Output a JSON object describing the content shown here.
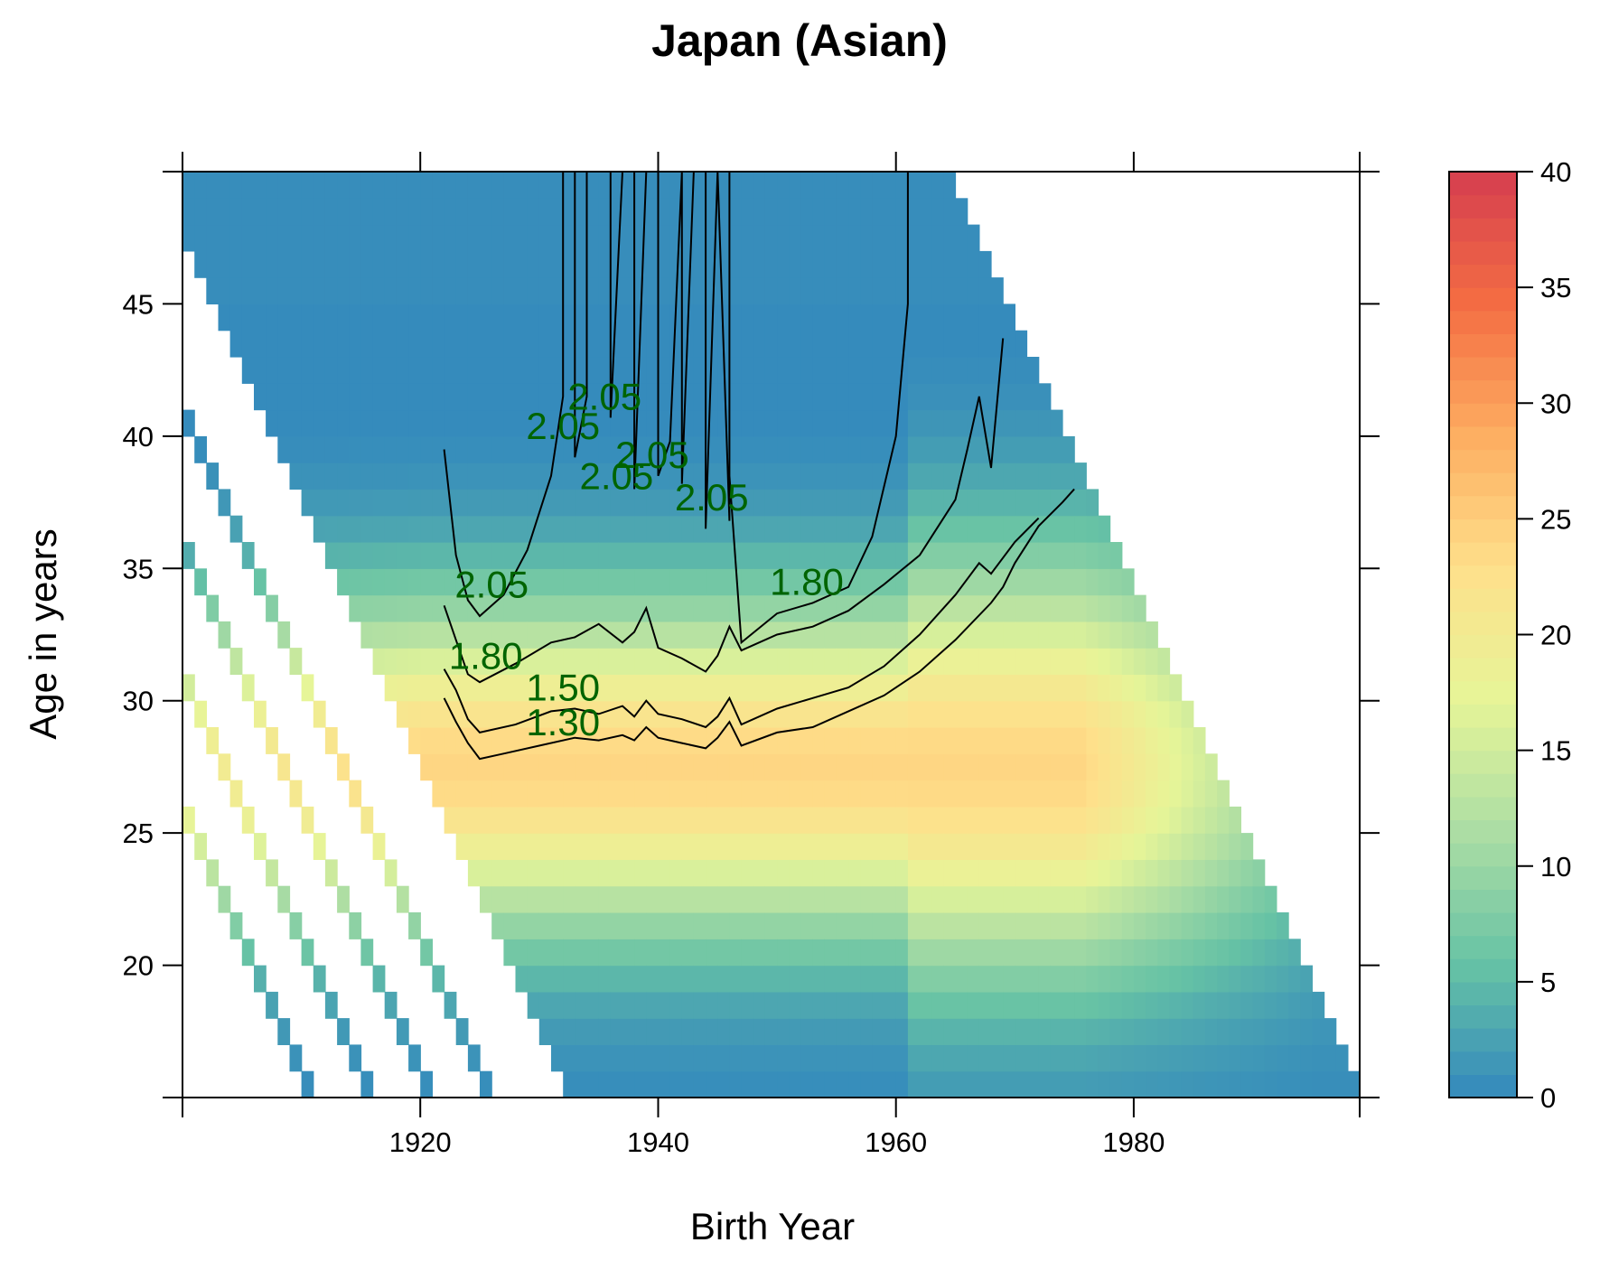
{
  "chart_data": {
    "type": "heatmap",
    "title": "Japan (Asian)",
    "xlabel": "Birth Year",
    "ylabel": "Age in years",
    "xlim": [
      1900,
      1999
    ],
    "ylim": [
      15,
      50
    ],
    "x_ticks": [
      1920,
      1940,
      1960,
      1980
    ],
    "x_tick_labels": [
      "1920",
      "1940",
      "1960",
      "1980"
    ],
    "y_ticks": [
      20,
      25,
      30,
      35,
      40,
      45
    ],
    "y_tick_labels": [
      "20",
      "25",
      "30",
      "35",
      "40",
      "45"
    ],
    "grid": false,
    "colorbar": {
      "range": [
        0,
        40
      ],
      "ticks": [
        0,
        5,
        10,
        15,
        20,
        25,
        30,
        35,
        40
      ],
      "tick_labels": [
        "0",
        "5",
        "10",
        "15",
        "20",
        "25",
        "30",
        "35",
        "40"
      ],
      "palette": [
        "#3288bd",
        "#66c2a5",
        "#abdda4",
        "#e6f598",
        "#fee08b",
        "#fdae61",
        "#f46d43",
        "#d53e4f"
      ]
    },
    "heatmap_peak": {
      "birth_year_range": [
        1920,
        1975
      ],
      "age": 27,
      "value": 24
    },
    "contours": [
      {
        "level_label": "1.30",
        "points": [
          [
            1922,
            30.1
          ],
          [
            1923,
            29.2
          ],
          [
            1924,
            28.4
          ],
          [
            1925,
            27.8
          ],
          [
            1927,
            28.0
          ],
          [
            1930,
            28.3
          ],
          [
            1933,
            28.6
          ],
          [
            1935,
            28.5
          ],
          [
            1937,
            28.7
          ],
          [
            1938,
            28.5
          ],
          [
            1939,
            29.0
          ],
          [
            1940,
            28.6
          ],
          [
            1942,
            28.4
          ],
          [
            1944,
            28.2
          ],
          [
            1945,
            28.6
          ],
          [
            1946,
            29.2
          ],
          [
            1947,
            28.3
          ],
          [
            1950,
            28.8
          ],
          [
            1953,
            29.0
          ],
          [
            1956,
            29.6
          ],
          [
            1959,
            30.2
          ],
          [
            1962,
            31.1
          ],
          [
            1965,
            32.3
          ],
          [
            1968,
            33.7
          ],
          [
            1969,
            34.3
          ],
          [
            1970,
            35.2
          ],
          [
            1972,
            36.6
          ],
          [
            1974,
            37.5
          ],
          [
            1975,
            38.0
          ]
        ]
      },
      {
        "level_label": "1.50",
        "points": [
          [
            1922,
            31.2
          ],
          [
            1923,
            30.4
          ],
          [
            1924,
            29.3
          ],
          [
            1925,
            28.8
          ],
          [
            1928,
            29.1
          ],
          [
            1931,
            29.6
          ],
          [
            1933,
            29.7
          ],
          [
            1935,
            29.5
          ],
          [
            1937,
            29.8
          ],
          [
            1938,
            29.4
          ],
          [
            1939,
            30.0
          ],
          [
            1940,
            29.5
          ],
          [
            1942,
            29.3
          ],
          [
            1944,
            29.0
          ],
          [
            1945,
            29.4
          ],
          [
            1946,
            30.1
          ],
          [
            1947,
            29.1
          ],
          [
            1950,
            29.7
          ],
          [
            1953,
            30.1
          ],
          [
            1956,
            30.5
          ],
          [
            1959,
            31.3
          ],
          [
            1962,
            32.5
          ],
          [
            1965,
            34.0
          ],
          [
            1967,
            35.2
          ],
          [
            1968,
            34.8
          ],
          [
            1970,
            36.0
          ],
          [
            1972,
            36.9
          ]
        ]
      },
      {
        "level_label": "1.80",
        "points": [
          [
            1922,
            33.6
          ],
          [
            1923,
            32.3
          ],
          [
            1924,
            31.0
          ],
          [
            1925,
            30.7
          ],
          [
            1928,
            31.4
          ],
          [
            1931,
            32.2
          ],
          [
            1933,
            32.4
          ],
          [
            1935,
            32.9
          ],
          [
            1937,
            32.2
          ],
          [
            1938,
            32.6
          ],
          [
            1939,
            33.5
          ],
          [
            1940,
            32.0
          ],
          [
            1942,
            31.6
          ],
          [
            1944,
            31.1
          ],
          [
            1945,
            31.7
          ],
          [
            1946,
            32.8
          ],
          [
            1947,
            31.9
          ],
          [
            1950,
            32.5
          ],
          [
            1953,
            32.8
          ],
          [
            1956,
            33.4
          ],
          [
            1959,
            34.4
          ],
          [
            1962,
            35.5
          ],
          [
            1965,
            37.6
          ],
          [
            1966,
            39.5
          ],
          [
            1967,
            41.5
          ],
          [
            1968,
            38.8
          ],
          [
            1969,
            43.7
          ]
        ]
      },
      {
        "level_label": "2.05",
        "points": [
          [
            1922,
            39.5
          ],
          [
            1923,
            35.5
          ],
          [
            1924,
            33.8
          ],
          [
            1925,
            33.2
          ],
          [
            1927,
            34.0
          ],
          [
            1929,
            35.7
          ],
          [
            1931,
            38.5
          ],
          [
            1932,
            41.5
          ],
          [
            1932,
            50
          ],
          [
            1933,
            50
          ],
          [
            1933,
            39.2
          ],
          [
            1934,
            41.5
          ],
          [
            1934,
            50
          ],
          [
            1936,
            50
          ],
          [
            1936,
            40.7
          ],
          [
            1937,
            50
          ],
          [
            1938,
            50
          ],
          [
            1938,
            38.0
          ],
          [
            1939,
            50
          ],
          [
            1940,
            50
          ],
          [
            1940,
            38.5
          ],
          [
            1941,
            39.8
          ],
          [
            1942,
            50
          ],
          [
            1942,
            50
          ],
          [
            1942,
            38.2
          ],
          [
            1943,
            50
          ],
          [
            1944,
            50
          ],
          [
            1944,
            36.5
          ],
          [
            1945,
            50
          ],
          [
            1945,
            50
          ],
          [
            1946,
            36.8
          ],
          [
            1946,
            50
          ],
          [
            1946,
            50
          ],
          [
            1946,
            38.5
          ],
          [
            1947,
            32.2
          ],
          [
            1950,
            33.3
          ],
          [
            1953,
            33.7
          ],
          [
            1956,
            34.3
          ],
          [
            1958,
            36.2
          ],
          [
            1960,
            40.0
          ],
          [
            1961,
            45.0
          ],
          [
            1961,
            50
          ]
        ]
      }
    ],
    "contour_labels": [
      {
        "text": "2.05",
        "x": 1935.5,
        "y": 41.0
      },
      {
        "text": "2.05",
        "x": 1932,
        "y": 39.9
      },
      {
        "text": "2.05",
        "x": 1939.5,
        "y": 38.8
      },
      {
        "text": "2.05",
        "x": 1936.5,
        "y": 38.0
      },
      {
        "text": "2.05",
        "x": 1944.5,
        "y": 37.2
      },
      {
        "text": "2.05",
        "x": 1926,
        "y": 33.9
      },
      {
        "text": "1.80",
        "x": 1952.5,
        "y": 34.0
      },
      {
        "text": "1.80",
        "x": 1925.5,
        "y": 31.2
      },
      {
        "text": "1.50",
        "x": 1932,
        "y": 30.0
      },
      {
        "text": "1.30",
        "x": 1932,
        "y": 28.7
      }
    ]
  }
}
